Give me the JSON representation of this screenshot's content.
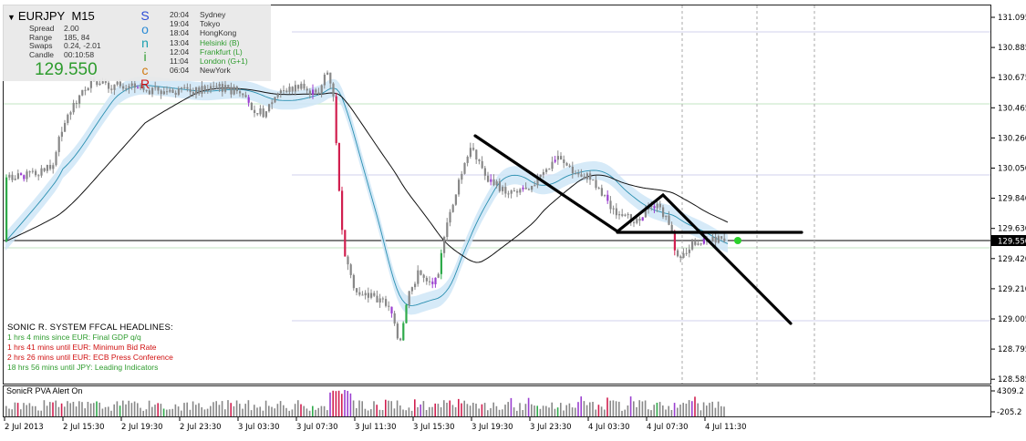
{
  "symbol": {
    "pair": "EURJPY",
    "timeframe": "M15"
  },
  "info_panel": {
    "stats": [
      {
        "label": "Spread",
        "value": "2.00"
      },
      {
        "label": "Range",
        "value": "185, 84"
      },
      {
        "label": "Swaps",
        "value": "0.24, -2.01"
      },
      {
        "label": "Candle",
        "value": "00:10:58"
      }
    ],
    "current_price": "129.550",
    "sonic_letters": [
      "S",
      "o",
      "n",
      "i",
      "c",
      "R"
    ],
    "sessions": [
      {
        "time": "20:04",
        "name": "Sydney",
        "color": "#333333"
      },
      {
        "time": "19:04",
        "name": "Tokyo",
        "color": "#333333"
      },
      {
        "time": "18:04",
        "name": "HongKong",
        "color": "#333333"
      },
      {
        "time": "13:04",
        "name": "Helsinki  (B)",
        "color": "#2e9c2e"
      },
      {
        "time": "12:04",
        "name": "Frankfurt  (L)",
        "color": "#2e9c2e"
      },
      {
        "time": "11:04",
        "name": "London  (G+1)",
        "color": "#2e9c2e"
      },
      {
        "time": "06:04",
        "name": "NewYork",
        "color": "#333333"
      }
    ]
  },
  "headlines": {
    "title": "SONIC R. SYSTEM  FFCAL HEADLINES:",
    "items": [
      {
        "text": "1 hrs 4 mins since EUR: Final GDP q/q",
        "color": "#2e9c2e"
      },
      {
        "text": "1 hrs 41 mins until EUR: Minimum Bid Rate",
        "color": "#d01010"
      },
      {
        "text": "2 hrs 26 mins until EUR: ECB Press Conference",
        "color": "#d01010"
      },
      {
        "text": "18 hrs 56 mins until JPY: Leading Indicators",
        "color": "#2e9c2e"
      }
    ]
  },
  "indicator": {
    "label": "SonicR PVA   Alert On",
    "scale_top": "4309.2",
    "scale_bottom": "-205.2"
  },
  "chart_data": {
    "type": "candlestick",
    "price_axis_labels": [
      "131.095",
      "130.885",
      "130.675",
      "130.465",
      "130.260",
      "130.050",
      "129.840",
      "129.630",
      "129.420",
      "129.210",
      "129.005",
      "128.795",
      "128.585"
    ],
    "current_price_label": "129.550",
    "time_axis_labels": [
      "2 Jul 2013",
      "2 Jul 15:30",
      "2 Jul 19:30",
      "2 Jul 23:30",
      "3 Jul 03:30",
      "3 Jul 07:30",
      "3 Jul 11:30",
      "3 Jul 15:30",
      "3 Jul 19:30",
      "3 Jul 23:30",
      "4 Jul 03:30",
      "4 Jul 07:30",
      "4 Jul 11:30"
    ],
    "ylim": [
      128.585,
      131.095
    ],
    "colors": {
      "bull": "#2eaa4a",
      "bear": "#d11f4f",
      "neutral": "#888888",
      "climax": "#9b3fd0",
      "ema_band": "#cfe6f7"
    }
  }
}
